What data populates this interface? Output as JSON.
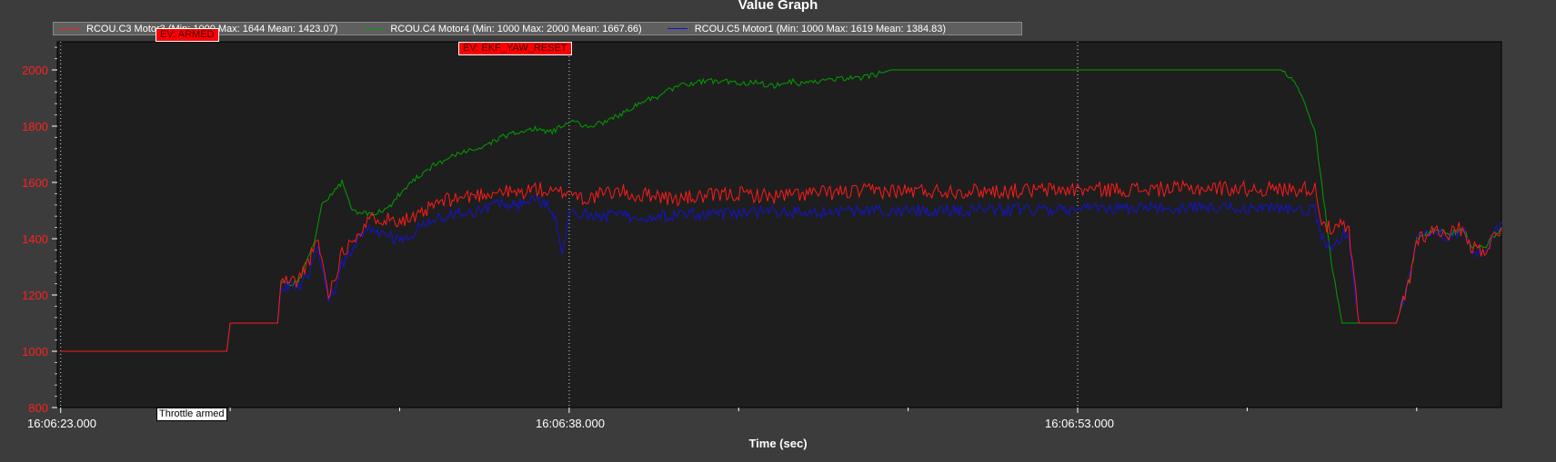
{
  "window_title": "Value Graph",
  "chart_data": {
    "type": "line",
    "title": "Value Graph",
    "xlabel": "Time (sec)",
    "ylabel": "",
    "x_unit": "seconds since 16:06:23.000",
    "xlim": [
      -0.1,
      42.5
    ],
    "ylim": [
      800,
      2100
    ],
    "y_ticks": [
      800,
      1000,
      1200,
      1400,
      1600,
      1800,
      2000
    ],
    "x_ticks": [
      {
        "t": 0,
        "label": "16:06:23.000"
      },
      {
        "t": 15,
        "label": "16:06:38.000"
      },
      {
        "t": 30,
        "label": "16:06:53.000"
      }
    ],
    "grid": "vertical dotted at major x ticks",
    "legend_position": "top-left",
    "series": [
      {
        "name": "RCOU.C3 Motor3 (Min: 1000 Max: 1644 Mean: 1423.07)",
        "color": "#ff1a1a",
        "x": [
          0,
          4.9,
          5.0,
          6.4,
          6.5,
          7.0,
          7.3,
          7.6,
          7.9,
          8.1,
          8.3,
          8.6,
          8.9,
          9.1,
          9.3,
          9.6,
          10.0,
          10.5,
          11.0,
          11.5,
          12.0,
          12.5,
          13.0,
          13.5,
          14.0,
          14.5,
          15.0,
          15.5,
          16.0,
          16.5,
          17.0,
          17.5,
          18.0,
          19.0,
          20.0,
          21.0,
          22.0,
          23.0,
          24.0,
          26.0,
          28.0,
          30.0,
          32.0,
          34.0,
          36.0,
          37.0,
          37.2,
          37.5,
          37.8,
          38.0,
          38.3,
          38.6,
          39.4,
          39.8,
          40.0,
          40.5,
          41.0,
          41.4,
          41.6,
          42.0,
          42.5
        ],
        "y": [
          1000,
          1000,
          1100,
          1100,
          1250,
          1250,
          1320,
          1390,
          1200,
          1270,
          1350,
          1400,
          1440,
          1460,
          1480,
          1470,
          1470,
          1470,
          1520,
          1540,
          1550,
          1560,
          1570,
          1560,
          1580,
          1560,
          1570,
          1540,
          1560,
          1570,
          1550,
          1560,
          1540,
          1550,
          1560,
          1550,
          1560,
          1565,
          1570,
          1570,
          1570,
          1575,
          1575,
          1580,
          1575,
          1580,
          1470,
          1420,
          1450,
          1420,
          1100,
          1100,
          1100,
          1260,
          1400,
          1430,
          1420,
          1440,
          1370,
          1360,
          1440
        ]
      },
      {
        "name": "RCOU.C4 Motor4 (Min: 1000 Max: 2000 Mean: 1667.66)",
        "color": "#00a000",
        "x": [
          0,
          4.9,
          5.0,
          6.4,
          6.5,
          7.0,
          7.5,
          7.7,
          8.0,
          8.3,
          8.6,
          8.9,
          9.3,
          9.6,
          10.0,
          10.5,
          11.0,
          11.5,
          12.0,
          12.5,
          13.0,
          13.5,
          14.0,
          14.5,
          15.0,
          15.5,
          16.0,
          16.5,
          17.0,
          17.5,
          18.0,
          18.5,
          19.0,
          19.5,
          20.0,
          20.5,
          21.0,
          21.5,
          22.0,
          22.5,
          23.0,
          23.5,
          24.0,
          24.5,
          25.0,
          26.0,
          28.0,
          30.0,
          32.0,
          34.0,
          36.0,
          36.5,
          36.8,
          37.0,
          37.3,
          37.5,
          37.8,
          38.0,
          38.3,
          38.6,
          39.4,
          39.8,
          40.0,
          40.5,
          41.0,
          41.4,
          41.6,
          42.0,
          42.5
        ],
        "y": [
          1000,
          1000,
          1100,
          1100,
          1240,
          1240,
          1400,
          1520,
          1560,
          1600,
          1500,
          1490,
          1490,
          1500,
          1560,
          1620,
          1660,
          1690,
          1710,
          1730,
          1760,
          1780,
          1790,
          1780,
          1820,
          1800,
          1810,
          1840,
          1880,
          1900,
          1930,
          1950,
          1960,
          1960,
          1950,
          1960,
          1940,
          1960,
          1950,
          1960,
          1970,
          1970,
          1980,
          2000,
          2000,
          2000,
          2000,
          2000,
          2000,
          2000,
          2000,
          1940,
          1850,
          1780,
          1500,
          1300,
          1100,
          1100,
          1100,
          1100,
          1100,
          1260,
          1400,
          1430,
          1420,
          1430,
          1370,
          1370,
          1440
        ]
      },
      {
        "name": "RCOU.C5 Motor1 (Min: 1000 Max: 1619 Mean: 1384.83)",
        "color": "#1414d2",
        "x": [
          0,
          4.9,
          5.0,
          6.4,
          6.5,
          7.0,
          7.3,
          7.6,
          7.9,
          8.1,
          8.3,
          8.6,
          8.9,
          9.3,
          9.6,
          10.0,
          10.5,
          11.0,
          11.5,
          12.0,
          12.5,
          13.0,
          13.5,
          14.0,
          14.5,
          14.8,
          15.0,
          15.5,
          16.0,
          17.0,
          18.0,
          19.0,
          20.0,
          21.0,
          22.0,
          24.0,
          26.0,
          28.0,
          30.0,
          32.0,
          34.0,
          36.0,
          37.0,
          37.2,
          37.5,
          37.8,
          38.0,
          38.3,
          38.6,
          39.4,
          39.8,
          40.0,
          40.5,
          41.0,
          41.4,
          41.6,
          42.0,
          42.5
        ],
        "y": [
          1000,
          1000,
          1100,
          1100,
          1230,
          1230,
          1280,
          1360,
          1180,
          1230,
          1300,
          1370,
          1420,
          1430,
          1420,
          1390,
          1430,
          1470,
          1490,
          1500,
          1500,
          1530,
          1520,
          1540,
          1510,
          1360,
          1480,
          1490,
          1480,
          1480,
          1480,
          1490,
          1490,
          1500,
          1490,
          1500,
          1500,
          1505,
          1505,
          1510,
          1510,
          1510,
          1500,
          1400,
          1360,
          1420,
          1400,
          1100,
          1100,
          1100,
          1260,
          1400,
          1420,
          1410,
          1420,
          1360,
          1350,
          1460
        ]
      }
    ],
    "annotations": [
      {
        "t": 2.9,
        "label": "EV: ARMED"
      },
      {
        "t": 11.7,
        "label": "EV: EKF_YAW_RESET"
      },
      {
        "t": 2.9,
        "label": "Throttle armed"
      }
    ]
  }
}
